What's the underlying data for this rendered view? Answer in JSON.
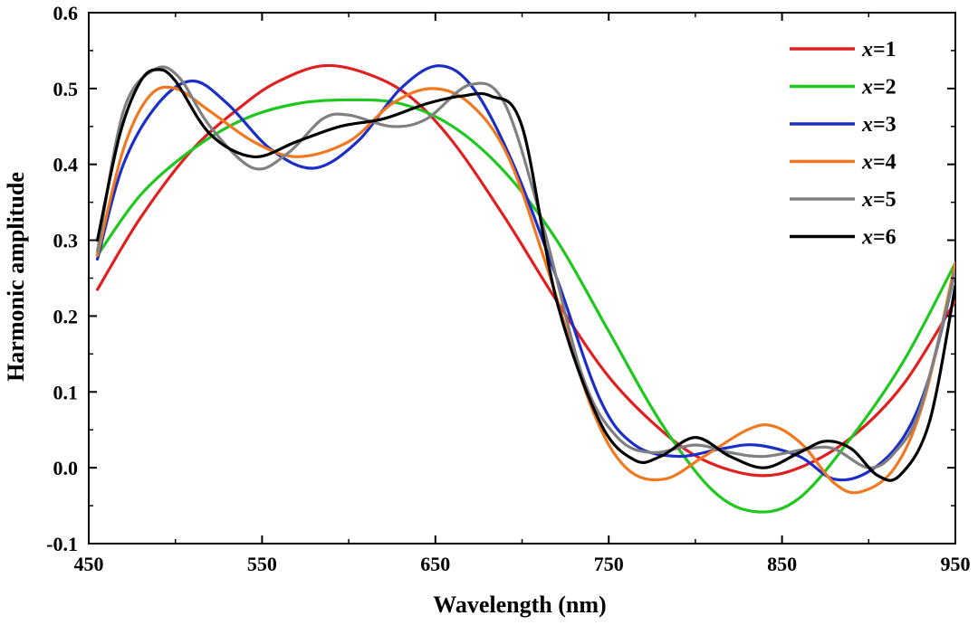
{
  "chart_data": {
    "type": "line",
    "title": "",
    "xlabel": "Wavelength (nm)",
    "ylabel": "Harmonic amplitude",
    "xlim": [
      450,
      950
    ],
    "ylim": [
      -0.1,
      0.6
    ],
    "xticks": [
      "450",
      "550",
      "650",
      "750",
      "850",
      "950"
    ],
    "yticks": [
      "-0.1",
      "0.0",
      "0.1",
      "0.2",
      "0.3",
      "0.4",
      "0.5",
      "0.6"
    ],
    "grid": false,
    "legend": "top-right",
    "series": [
      {
        "name": "x=1",
        "color": "#e02020",
        "points": [
          [
            455,
            0.235
          ],
          [
            480,
            0.33
          ],
          [
            510,
            0.42
          ],
          [
            540,
            0.48
          ],
          [
            560,
            0.51
          ],
          [
            585,
            0.53
          ],
          [
            610,
            0.52
          ],
          [
            635,
            0.49
          ],
          [
            660,
            0.43
          ],
          [
            690,
            0.33
          ],
          [
            720,
            0.22
          ],
          [
            750,
            0.12
          ],
          [
            780,
            0.05
          ],
          [
            805,
            0.01
          ],
          [
            835,
            -0.01
          ],
          [
            860,
            0.0
          ],
          [
            890,
            0.04
          ],
          [
            920,
            0.11
          ],
          [
            950,
            0.22
          ]
        ]
      },
      {
        "name": "x=2",
        "color": "#1ec81e",
        "points": [
          [
            455,
            0.28
          ],
          [
            480,
            0.36
          ],
          [
            510,
            0.42
          ],
          [
            540,
            0.46
          ],
          [
            570,
            0.48
          ],
          [
            600,
            0.485
          ],
          [
            630,
            0.48
          ],
          [
            660,
            0.45
          ],
          [
            690,
            0.39
          ],
          [
            720,
            0.3
          ],
          [
            750,
            0.18
          ],
          [
            780,
            0.06
          ],
          [
            810,
            -0.03
          ],
          [
            835,
            -0.058
          ],
          [
            860,
            -0.04
          ],
          [
            890,
            0.04
          ],
          [
            920,
            0.14
          ],
          [
            950,
            0.27
          ]
        ]
      },
      {
        "name": "x=3",
        "color": "#1c2ec8",
        "points": [
          [
            455,
            0.275
          ],
          [
            470,
            0.4
          ],
          [
            490,
            0.48
          ],
          [
            510,
            0.51
          ],
          [
            530,
            0.48
          ],
          [
            555,
            0.42
          ],
          [
            580,
            0.395
          ],
          [
            605,
            0.43
          ],
          [
            630,
            0.5
          ],
          [
            652,
            0.53
          ],
          [
            672,
            0.5
          ],
          [
            695,
            0.4
          ],
          [
            720,
            0.25
          ],
          [
            745,
            0.09
          ],
          [
            765,
            0.03
          ],
          [
            790,
            0.015
          ],
          [
            815,
            0.025
          ],
          [
            835,
            0.03
          ],
          [
            860,
            0.015
          ],
          [
            880,
            -0.015
          ],
          [
            900,
            -0.005
          ],
          [
            920,
            0.04
          ],
          [
            935,
            0.12
          ],
          [
            950,
            0.26
          ]
        ]
      },
      {
        "name": "x=4",
        "color": "#f07820",
        "points": [
          [
            455,
            0.28
          ],
          [
            470,
            0.42
          ],
          [
            485,
            0.49
          ],
          [
            500,
            0.5
          ],
          [
            520,
            0.47
          ],
          [
            545,
            0.43
          ],
          [
            570,
            0.41
          ],
          [
            600,
            0.43
          ],
          [
            625,
            0.48
          ],
          [
            648,
            0.5
          ],
          [
            670,
            0.48
          ],
          [
            692,
            0.41
          ],
          [
            715,
            0.26
          ],
          [
            740,
            0.08
          ],
          [
            760,
            0.0
          ],
          [
            782,
            -0.015
          ],
          [
            805,
            0.015
          ],
          [
            830,
            0.05
          ],
          [
            845,
            0.055
          ],
          [
            862,
            0.03
          ],
          [
            880,
            -0.02
          ],
          [
            895,
            -0.032
          ],
          [
            915,
            0.0
          ],
          [
            932,
            0.09
          ],
          [
            950,
            0.27
          ]
        ]
      },
      {
        "name": "x=5",
        "color": "#808080",
        "points": [
          [
            455,
            0.285
          ],
          [
            470,
            0.47
          ],
          [
            488,
            0.525
          ],
          [
            502,
            0.515
          ],
          [
            520,
            0.45
          ],
          [
            545,
            0.395
          ],
          [
            565,
            0.415
          ],
          [
            585,
            0.46
          ],
          [
            600,
            0.465
          ],
          [
            625,
            0.45
          ],
          [
            645,
            0.46
          ],
          [
            670,
            0.505
          ],
          [
            690,
            0.48
          ],
          [
            712,
            0.32
          ],
          [
            735,
            0.12
          ],
          [
            755,
            0.04
          ],
          [
            775,
            0.02
          ],
          [
            800,
            0.03
          ],
          [
            820,
            0.02
          ],
          [
            840,
            0.015
          ],
          [
            865,
            0.025
          ],
          [
            880,
            0.025
          ],
          [
            900,
            0.0
          ],
          [
            915,
            0.02
          ],
          [
            930,
            0.08
          ],
          [
            950,
            0.26
          ]
        ]
      },
      {
        "name": "x=6",
        "color": "#000000",
        "points": [
          [
            455,
            0.3
          ],
          [
            468,
            0.44
          ],
          [
            480,
            0.51
          ],
          [
            490,
            0.525
          ],
          [
            500,
            0.51
          ],
          [
            520,
            0.44
          ],
          [
            545,
            0.41
          ],
          [
            570,
            0.43
          ],
          [
            595,
            0.45
          ],
          [
            620,
            0.46
          ],
          [
            645,
            0.48
          ],
          [
            665,
            0.49
          ],
          [
            682,
            0.49
          ],
          [
            700,
            0.45
          ],
          [
            720,
            0.22
          ],
          [
            745,
            0.06
          ],
          [
            765,
            0.01
          ],
          [
            780,
            0.015
          ],
          [
            800,
            0.04
          ],
          [
            820,
            0.015
          ],
          [
            840,
            0.0
          ],
          [
            860,
            0.02
          ],
          [
            875,
            0.035
          ],
          [
            890,
            0.025
          ],
          [
            905,
            -0.01
          ],
          [
            918,
            -0.01
          ],
          [
            935,
            0.06
          ],
          [
            950,
            0.24
          ]
        ]
      }
    ]
  }
}
